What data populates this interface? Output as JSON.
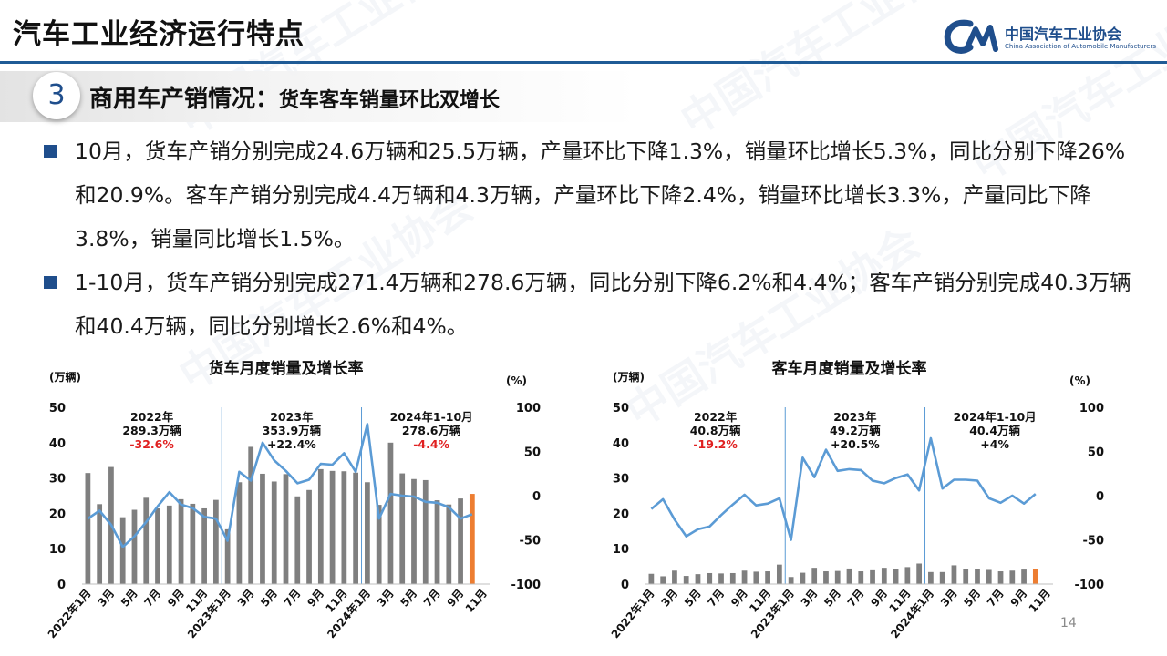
{
  "header": {
    "title": "汽车工业经济运行特点",
    "logo_cn": "中国汽车工业协会",
    "logo_en": "China Association of Automobile Manufacturers"
  },
  "section": {
    "number": "3",
    "title": "商用车产销情况：",
    "subtitle": "货车客车销量环比双增长"
  },
  "bullets": [
    "10月，货车产销分别完成24.6万辆和25.5万辆，产量环比下降1.3%，销量环比增长5.3%，同比分别下降26%和20.9%。客车产销分别完成4.4万辆和4.3万辆，产量环比下降2.4%，销量环比增长3.3%，产量同比下降3.8%，销量同比增长1.5%。",
    "1-10月，货车产销分别完成271.4万辆和278.6万辆，同比分别下降6.2%和4.4%；客车产销分别完成40.3万辆和40.4万辆，同比分别增长2.6%和4%。"
  ],
  "watermark_text": "中国汽车工业协会",
  "page_number": "14",
  "colors": {
    "brand_blue": "#1f4e8c",
    "bar_gray": "#7f7f7f",
    "bar_highlight": "#ed7d31",
    "line_blue": "#5b9bd5",
    "negative_red": "#e02020",
    "divider_blue": "#5b9bd5"
  },
  "chart_data": [
    {
      "type": "bar",
      "title": "货车月度销量及增长率",
      "ylabel": "(万辆)",
      "y2label": "(%)",
      "ylim": [
        0,
        50
      ],
      "y2lim": [
        -100,
        100
      ],
      "yticks": [
        "0",
        "10",
        "20",
        "30",
        "40",
        "50"
      ],
      "y2ticks": [
        "-100",
        "-50",
        "0",
        "50",
        "100"
      ],
      "x_tick_labels": [
        "2022年1月",
        "3月",
        "5月",
        "7月",
        "9月",
        "11月",
        "2023年1月",
        "3月",
        "5月",
        "7月",
        "9月",
        "11月",
        "2024年1月",
        "3月",
        "5月",
        "7月",
        "9月",
        "11月"
      ],
      "n_months": 35,
      "series": [
        {
          "name": "销量",
          "values": [
            31.4,
            22.6,
            33.1,
            18.9,
            21.0,
            24.4,
            21.4,
            22.2,
            24.0,
            22.7,
            21.4,
            23.8,
            15.5,
            28.8,
            38.8,
            31.2,
            29.0,
            31.1,
            24.8,
            26.6,
            32.5,
            32.0,
            31.9,
            31.5,
            28.8,
            22.4,
            40.0,
            31.3,
            29.7,
            29.4,
            23.7,
            22.5,
            24.2,
            25.5
          ]
        },
        {
          "name": "增长率",
          "axis": "right",
          "values": [
            -26,
            -17,
            -33,
            -58,
            -46,
            -30,
            -12,
            4,
            -10,
            -14,
            -24,
            -26,
            -51,
            27,
            17,
            60,
            40,
            28,
            14,
            18,
            36,
            35,
            48,
            27,
            81,
            -26,
            2,
            0,
            -1,
            -7,
            -8,
            -13,
            -26,
            -21
          ]
        }
      ],
      "periods": [
        {
          "label": "2022年",
          "total": "289.3万辆",
          "growth": "-32.6%",
          "negative": true
        },
        {
          "label": "2023年",
          "total": "353.9万辆",
          "growth": "+22.4%",
          "negative": false
        },
        {
          "label": "2024年1-10月",
          "total": "278.6万辆",
          "growth": "-4.4%",
          "negative": true
        }
      ]
    },
    {
      "type": "bar",
      "title": "客车月度销量及增长率",
      "ylabel": "(万辆)",
      "y2label": "(%)",
      "ylim": [
        0,
        50
      ],
      "y2lim": [
        -100,
        100
      ],
      "yticks": [
        "0",
        "10",
        "20",
        "30",
        "40",
        "50"
      ],
      "y2ticks": [
        "-100",
        "-50",
        "0",
        "50",
        "100"
      ],
      "x_tick_labels": [
        "2022年1月",
        "3月",
        "5月",
        "7月",
        "9月",
        "11月",
        "2023年1月",
        "3月",
        "5月",
        "7月",
        "9月",
        "11月",
        "2024年1月",
        "3月",
        "5月",
        "7月",
        "9月",
        "11月"
      ],
      "n_months": 35,
      "series": [
        {
          "name": "销量",
          "values": [
            2.9,
            2.2,
            3.8,
            2.3,
            2.8,
            3.1,
            3.0,
            3.1,
            3.8,
            3.5,
            3.6,
            5.5,
            2.0,
            3.2,
            4.6,
            3.6,
            3.7,
            4.4,
            3.6,
            3.9,
            4.6,
            4.3,
            4.8,
            5.8,
            3.4,
            3.4,
            5.3,
            4.2,
            4.2,
            4.0,
            3.6,
            3.8,
            4.1,
            4.3
          ]
        },
        {
          "name": "增长率",
          "axis": "right",
          "values": [
            -15,
            -4,
            -27,
            -46,
            -38,
            -35,
            -22,
            -10,
            1,
            -11,
            -9,
            -3,
            -50,
            43,
            21,
            52,
            28,
            30,
            29,
            17,
            14,
            20,
            24,
            6,
            65,
            8,
            18,
            18,
            17,
            -3,
            -8,
            0,
            -9,
            2
          ]
        }
      ],
      "periods": [
        {
          "label": "2022年",
          "total": "40.8万辆",
          "growth": "-19.2%",
          "negative": true
        },
        {
          "label": "2023年",
          "total": "49.2万辆",
          "growth": "+20.5%",
          "negative": false
        },
        {
          "label": "2024年1-10月",
          "total": "40.4万辆",
          "growth": "+4%",
          "negative": false
        }
      ]
    }
  ]
}
